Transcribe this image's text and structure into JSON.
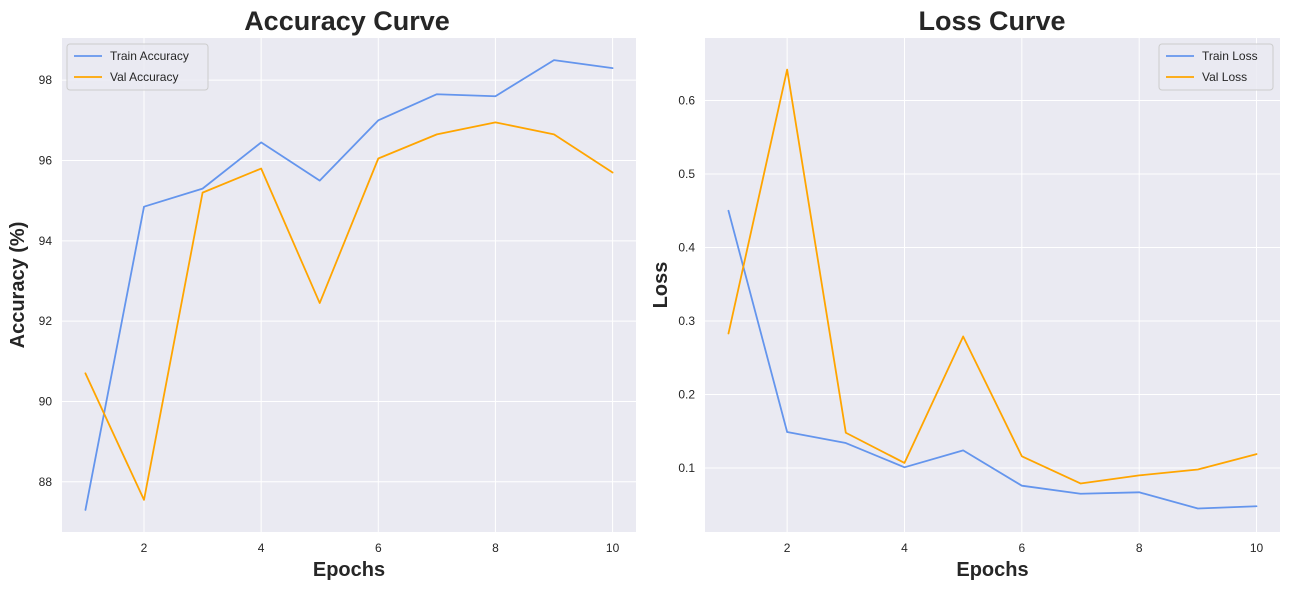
{
  "chart_data": [
    {
      "type": "line",
      "title": "Accuracy Curve",
      "xlabel": "Epochs",
      "ylabel": "Accuracy (%)",
      "x": [
        1,
        2,
        3,
        4,
        5,
        6,
        7,
        8,
        9,
        10
      ],
      "xlim": [
        0.6,
        10.4
      ],
      "ylim": [
        86.75,
        99.05
      ],
      "xticks": [
        2,
        4,
        6,
        8,
        10
      ],
      "yticks": [
        88,
        90,
        92,
        94,
        96,
        98
      ],
      "grid": true,
      "legend_position": "top-left",
      "series": [
        {
          "name": "Train Accuracy",
          "color": "#6495ED",
          "values": [
            87.3,
            94.85,
            95.3,
            96.45,
            95.5,
            97.0,
            97.65,
            97.6,
            98.5,
            98.3
          ]
        },
        {
          "name": "Val Accuracy",
          "color": "#FFA500",
          "values": [
            90.7,
            87.55,
            95.2,
            95.8,
            92.45,
            96.05,
            96.65,
            96.95,
            96.65,
            95.7
          ]
        }
      ]
    },
    {
      "type": "line",
      "title": "Loss Curve",
      "xlabel": "Epochs",
      "ylabel": "Loss",
      "x": [
        1,
        2,
        3,
        4,
        5,
        6,
        7,
        8,
        9,
        10
      ],
      "xlim": [
        0.6,
        10.4
      ],
      "ylim": [
        0.013,
        0.685
      ],
      "xticks": [
        2,
        4,
        6,
        8,
        10
      ],
      "yticks": [
        0.1,
        0.2,
        0.3,
        0.4,
        0.5,
        0.6
      ],
      "grid": true,
      "legend_position": "top-right",
      "series": [
        {
          "name": "Train Loss",
          "color": "#6495ED",
          "values": [
            0.45,
            0.149,
            0.134,
            0.101,
            0.124,
            0.076,
            0.065,
            0.067,
            0.045,
            0.048
          ]
        },
        {
          "name": "Val Loss",
          "color": "#FFA500",
          "values": [
            0.283,
            0.642,
            0.148,
            0.107,
            0.279,
            0.116,
            0.079,
            0.09,
            0.098,
            0.119
          ]
        }
      ]
    }
  ]
}
